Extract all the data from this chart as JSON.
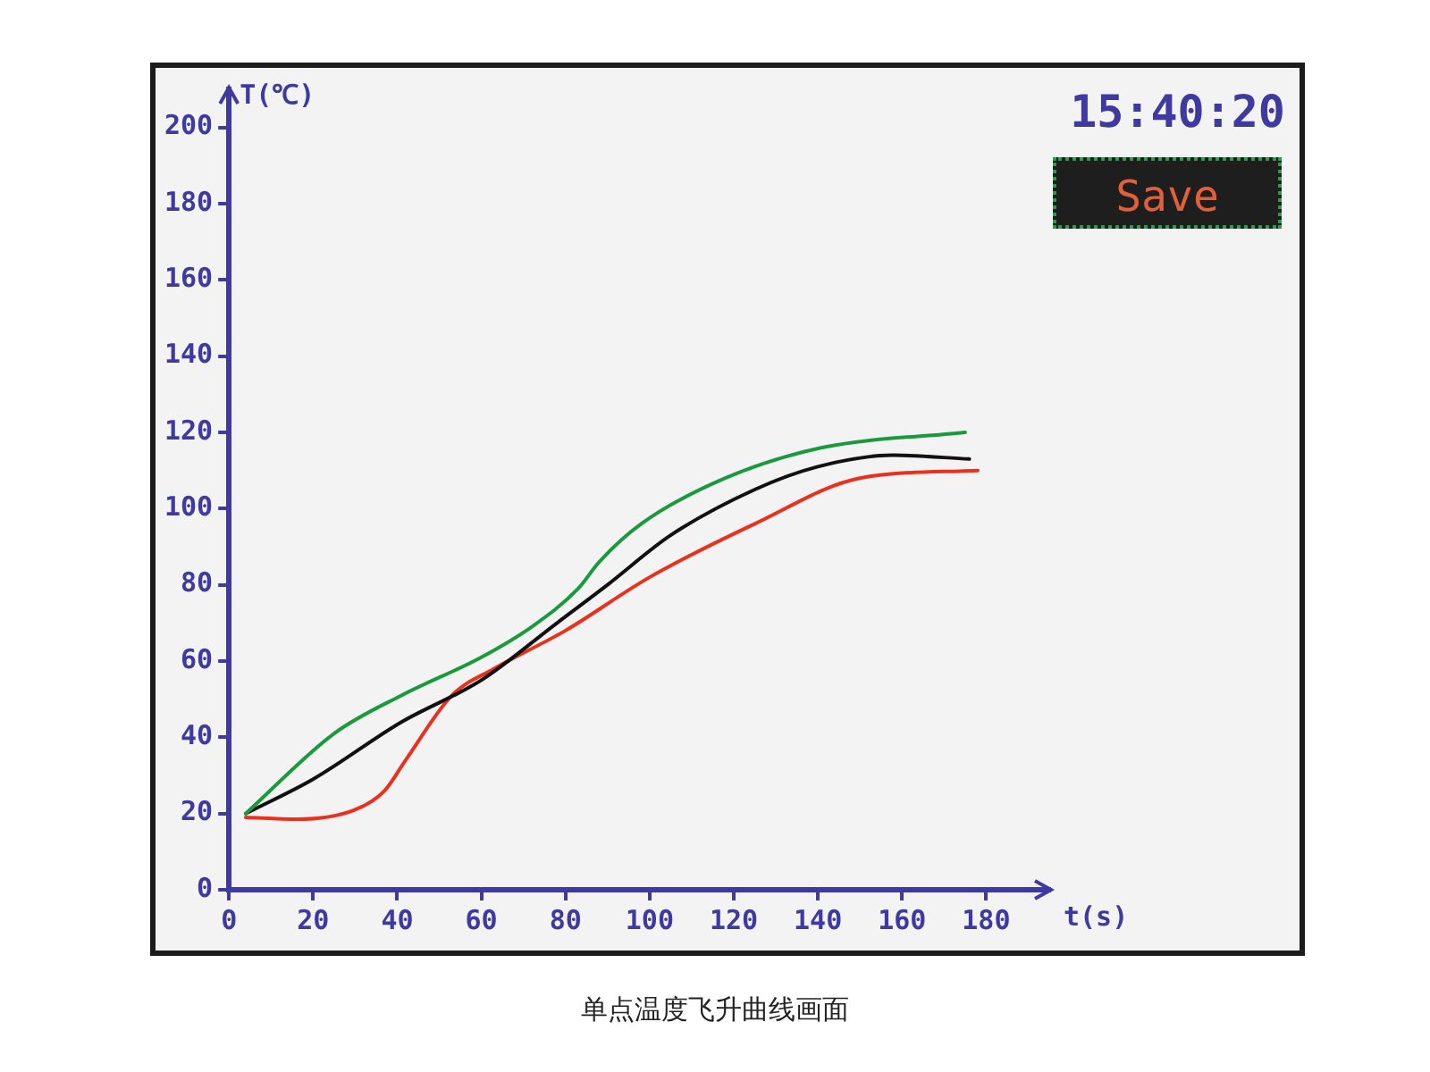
{
  "chart_data": {
    "type": "line",
    "xlabel": "t(s)",
    "ylabel": "T(℃)",
    "annotations": [
      "15:40:20",
      "Save",
      "单点温度飞升曲线画面"
    ],
    "xlim": [
      0,
      195
    ],
    "xticks": [
      0,
      20,
      40,
      60,
      80,
      100,
      120,
      140,
      160,
      180
    ],
    "ylim": [
      0,
      210
    ],
    "yticks": [
      0,
      20,
      40,
      60,
      80,
      100,
      120,
      140,
      160,
      180,
      200
    ],
    "grid": false,
    "legend": false,
    "marker": "none",
    "line_style": "solid",
    "series": [
      {
        "color": "#1a9a3c",
        "x": [
          4,
          25,
          41,
          60,
          72,
          83,
          88,
          98,
          118,
          141,
          175
        ],
        "values": [
          20,
          41,
          51,
          61,
          69,
          79,
          86,
          96,
          108,
          116,
          120
        ]
      },
      {
        "color": "#111111",
        "x": [
          4,
          20,
          41,
          60,
          78,
          90,
          105,
          125,
          140,
          158,
          176
        ],
        "values": [
          20,
          29,
          44,
          55,
          70,
          80,
          93,
          105,
          111,
          114,
          113
        ]
      },
      {
        "color": "#e8321e",
        "x": [
          4,
          16,
          30,
          37,
          42,
          53,
          63,
          80,
          100,
          125,
          150,
          178
        ],
        "values": [
          19,
          18.5,
          21,
          26,
          34,
          51,
          58,
          68,
          82,
          96,
          108,
          110
        ]
      }
    ]
  }
}
